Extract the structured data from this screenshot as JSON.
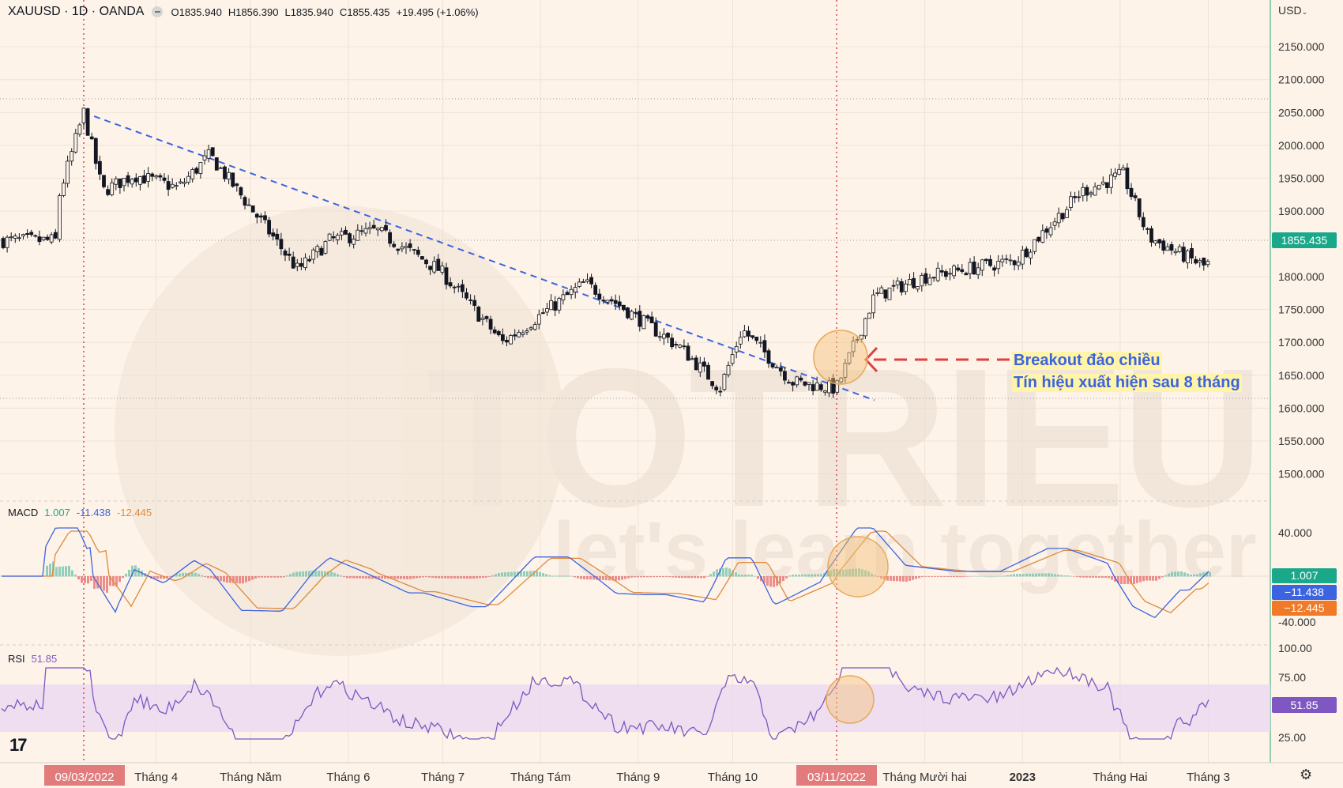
{
  "header": {
    "symbol": "XAUUSD · 1D · OANDA",
    "open_label": "O",
    "open": "1835.940",
    "high_label": "H",
    "high": "1856.390",
    "low_label": "L",
    "low": "1835.940",
    "close_label": "C",
    "close": "1855.435",
    "change": "+19.495 (+1.06%)"
  },
  "currency": "USD",
  "price_axis": {
    "ticks": [
      "2150.000",
      "2100.000",
      "2050.000",
      "2000.000",
      "1950.000",
      "1900.000",
      "1800.000",
      "1750.000",
      "1700.000",
      "1650.000",
      "1600.000",
      "1550.000",
      "1500.000"
    ],
    "tick_values": [
      2150,
      2100,
      2050,
      2000,
      1950,
      1900,
      1800,
      1750,
      1700,
      1650,
      1600,
      1550,
      1500
    ],
    "last_price_badge": "1855.435"
  },
  "time_axis": {
    "labels": [
      "Tháng 4",
      "Tháng Năm",
      "Tháng 6",
      "Tháng 7",
      "Tháng Tám",
      "Tháng 9",
      "Tháng 10",
      "Tháng Mười hai",
      "2023",
      "Tháng Hai",
      "Tháng 3"
    ],
    "highlight_dates": [
      "09/03/2022",
      "03/11/2022"
    ]
  },
  "annotation": {
    "line1": "Breakout đảo chiều",
    "line2": "Tín hiệu xuất hiện sau 8 tháng"
  },
  "watermark": {
    "brand": "TOTRIEU",
    "slogan": "let's learn together"
  },
  "macd": {
    "label": "MACD",
    "hist_value": "1.007",
    "macd_value": "-11.438",
    "signal_value": "-12.445",
    "axis_ticks": [
      "40.000",
      "-40.000"
    ],
    "badges": [
      "1.007",
      "−11.438",
      "−12.445"
    ]
  },
  "rsi": {
    "label": "RSI",
    "value": "51.85",
    "axis_ticks": [
      "100.00",
      "75.00",
      "25.00"
    ],
    "badge": "51.85"
  },
  "logo": "17",
  "colors": {
    "background": "#fdf3e8",
    "candle": "#131722",
    "trendline": "#3c64e0",
    "highlight_line": "#e07070",
    "macd_line": "#3c64e0",
    "signal_line": "#e08a3c",
    "hist_pos": "#4caf9a",
    "hist_neg": "#e04848",
    "rsi_line": "#7e57c2",
    "rsi_band": "#ead8f0",
    "circle": "#f5c07a",
    "annotation_text": "#3c64e0",
    "annotation_bg": "#fff4a8"
  },
  "chart_data": {
    "type": "candlestick",
    "instrument": "XAUUSD",
    "timeframe": "1D",
    "close_points": [
      [
        "2022-03-01",
        1920
      ],
      [
        "2022-03-09",
        2050
      ],
      [
        "2022-03-15",
        1930
      ],
      [
        "2022-03-25",
        1955
      ],
      [
        "2022-04-08",
        1935
      ],
      [
        "2022-04-18",
        1985
      ],
      [
        "2022-05-05",
        1880
      ],
      [
        "2022-05-16",
        1810
      ],
      [
        "2022-05-26",
        1855
      ],
      [
        "2022-06-10",
        1870
      ],
      [
        "2022-06-30",
        1810
      ],
      [
        "2022-07-20",
        1700
      ],
      [
        "2022-08-15",
        1790
      ],
      [
        "2022-08-25",
        1760
      ],
      [
        "2022-09-15",
        1690
      ],
      [
        "2022-09-27",
        1630
      ],
      [
        "2022-10-04",
        1720
      ],
      [
        "2022-10-20",
        1640
      ],
      [
        "2022-11-03",
        1630
      ],
      [
        "2022-11-15",
        1770
      ],
      [
        "2022-12-01",
        1800
      ],
      [
        "2022-12-30",
        1825
      ],
      [
        "2023-01-20",
        1930
      ],
      [
        "2023-02-02",
        1955
      ],
      [
        "2023-02-10",
        1860
      ],
      [
        "2023-02-28",
        1815
      ],
      [
        "2023-03-07",
        1855
      ]
    ],
    "trendline": {
      "from": [
        "2022-03-09",
        2050
      ],
      "to": [
        "2022-11-15",
        1612
      ]
    },
    "ylim": [
      1450,
      2200
    ]
  }
}
